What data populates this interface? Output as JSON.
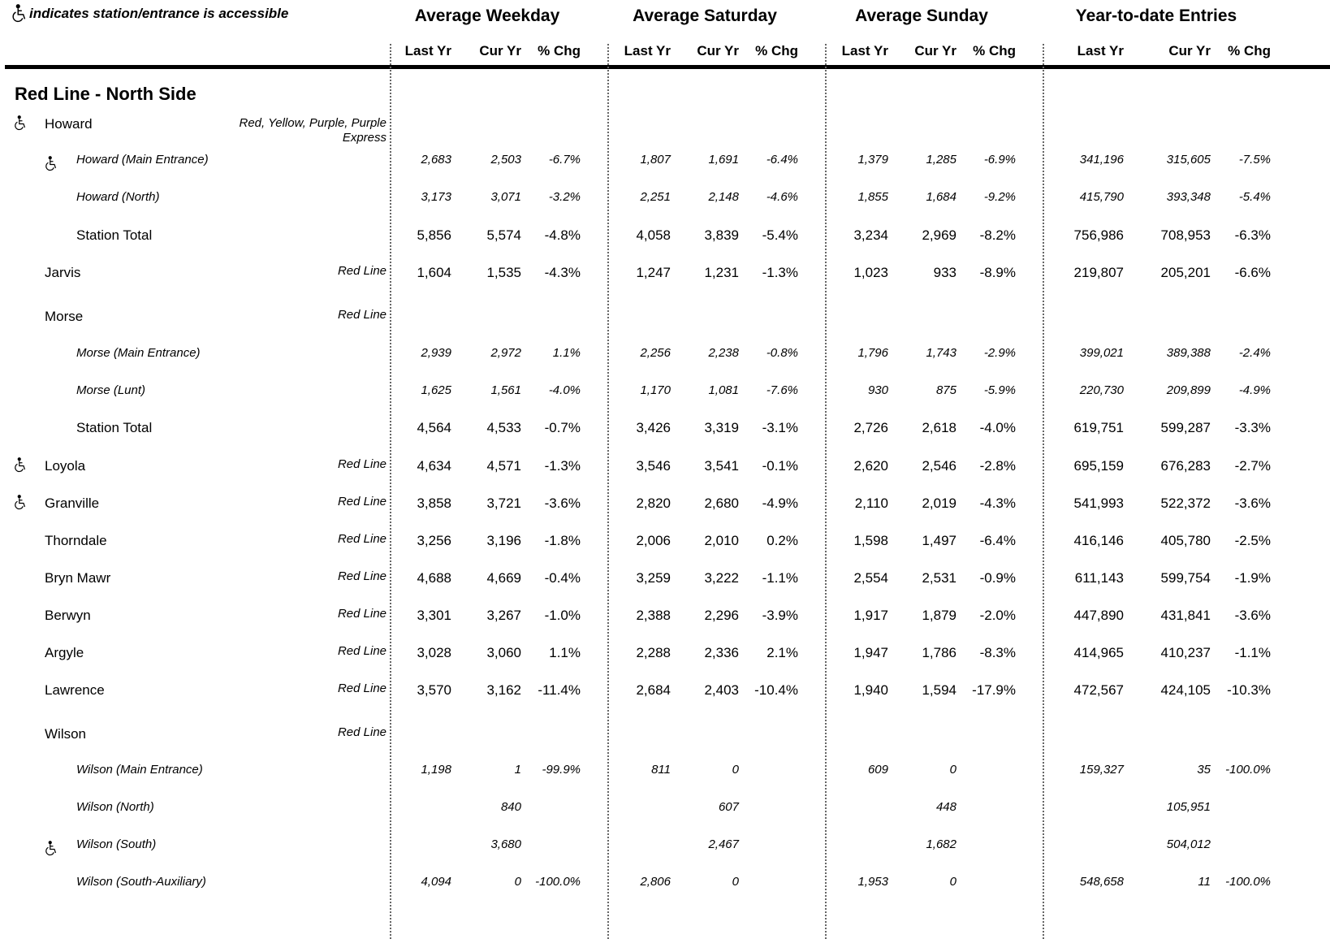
{
  "legend": {
    "text": "indicates station/entrance is accessible",
    "icon": "wheelchair-icon"
  },
  "groups": [
    "Average Weekday",
    "Average Saturday",
    "Average Sunday",
    "Year-to-date Entries"
  ],
  "subheaders": [
    "Last Yr",
    "Cur Yr",
    "% Chg"
  ],
  "section_title": "Red Line - North Side",
  "rows": [
    {
      "type": "station",
      "accessible": true,
      "name": "Howard",
      "lines": "Red, Yellow, Purple, Purple\nExpress",
      "values": []
    },
    {
      "type": "entrance",
      "accessible": true,
      "name": "Howard (Main Entrance)",
      "lines": "",
      "values": [
        "2,683",
        "2,503",
        "-6.7%",
        "1,807",
        "1,691",
        "-6.4%",
        "1,379",
        "1,285",
        "-6.9%",
        "341,196",
        "315,605",
        "-7.5%"
      ]
    },
    {
      "type": "entrance",
      "accessible": false,
      "name": "Howard (North)",
      "lines": "",
      "values": [
        "3,173",
        "3,071",
        "-3.2%",
        "2,251",
        "2,148",
        "-4.6%",
        "1,855",
        "1,684",
        "-9.2%",
        "415,790",
        "393,348",
        "-5.4%"
      ]
    },
    {
      "type": "total",
      "accessible": false,
      "name": "Station Total",
      "lines": "",
      "values": [
        "5,856",
        "5,574",
        "-4.8%",
        "4,058",
        "3,839",
        "-5.4%",
        "3,234",
        "2,969",
        "-8.2%",
        "756,986",
        "708,953",
        "-6.3%"
      ]
    },
    {
      "type": "station",
      "accessible": false,
      "name": "Jarvis",
      "lines": "Red Line",
      "values": [
        "1,604",
        "1,535",
        "-4.3%",
        "1,247",
        "1,231",
        "-1.3%",
        "1,023",
        "933",
        "-8.9%",
        "219,807",
        "205,201",
        "-6.6%"
      ]
    },
    {
      "type": "station",
      "accessible": false,
      "name": "Morse",
      "lines": "Red Line",
      "values": []
    },
    {
      "type": "entrance",
      "accessible": false,
      "name": "Morse (Main Entrance)",
      "lines": "",
      "values": [
        "2,939",
        "2,972",
        "1.1%",
        "2,256",
        "2,238",
        "-0.8%",
        "1,796",
        "1,743",
        "-2.9%",
        "399,021",
        "389,388",
        "-2.4%"
      ]
    },
    {
      "type": "entrance",
      "accessible": false,
      "name": "Morse (Lunt)",
      "lines": "",
      "values": [
        "1,625",
        "1,561",
        "-4.0%",
        "1,170",
        "1,081",
        "-7.6%",
        "930",
        "875",
        "-5.9%",
        "220,730",
        "209,899",
        "-4.9%"
      ]
    },
    {
      "type": "total",
      "accessible": false,
      "name": "Station Total",
      "lines": "",
      "values": [
        "4,564",
        "4,533",
        "-0.7%",
        "3,426",
        "3,319",
        "-3.1%",
        "2,726",
        "2,618",
        "-4.0%",
        "619,751",
        "599,287",
        "-3.3%"
      ]
    },
    {
      "type": "station",
      "accessible": true,
      "name": "Loyola",
      "lines": "Red Line",
      "values": [
        "4,634",
        "4,571",
        "-1.3%",
        "3,546",
        "3,541",
        "-0.1%",
        "2,620",
        "2,546",
        "-2.8%",
        "695,159",
        "676,283",
        "-2.7%"
      ]
    },
    {
      "type": "station",
      "accessible": true,
      "name": "Granville",
      "lines": "Red Line",
      "values": [
        "3,858",
        "3,721",
        "-3.6%",
        "2,820",
        "2,680",
        "-4.9%",
        "2,110",
        "2,019",
        "-4.3%",
        "541,993",
        "522,372",
        "-3.6%"
      ]
    },
    {
      "type": "station",
      "accessible": false,
      "name": "Thorndale",
      "lines": "Red Line",
      "values": [
        "3,256",
        "3,196",
        "-1.8%",
        "2,006",
        "2,010",
        "0.2%",
        "1,598",
        "1,497",
        "-6.4%",
        "416,146",
        "405,780",
        "-2.5%"
      ]
    },
    {
      "type": "station",
      "accessible": false,
      "name": "Bryn Mawr",
      "lines": "Red Line",
      "values": [
        "4,688",
        "4,669",
        "-0.4%",
        "3,259",
        "3,222",
        "-1.1%",
        "2,554",
        "2,531",
        "-0.9%",
        "611,143",
        "599,754",
        "-1.9%"
      ]
    },
    {
      "type": "station",
      "accessible": false,
      "name": "Berwyn",
      "lines": "Red Line",
      "values": [
        "3,301",
        "3,267",
        "-1.0%",
        "2,388",
        "2,296",
        "-3.9%",
        "1,917",
        "1,879",
        "-2.0%",
        "447,890",
        "431,841",
        "-3.6%"
      ]
    },
    {
      "type": "station",
      "accessible": false,
      "name": "Argyle",
      "lines": "Red Line",
      "values": [
        "3,028",
        "3,060",
        "1.1%",
        "2,288",
        "2,336",
        "2.1%",
        "1,947",
        "1,786",
        "-8.3%",
        "414,965",
        "410,237",
        "-1.1%"
      ]
    },
    {
      "type": "station",
      "accessible": false,
      "name": "Lawrence",
      "lines": "Red Line",
      "values": [
        "3,570",
        "3,162",
        "-11.4%",
        "2,684",
        "2,403",
        "-10.4%",
        "1,940",
        "1,594",
        "-17.9%",
        "472,567",
        "424,105",
        "-10.3%"
      ]
    },
    {
      "type": "station",
      "accessible": false,
      "name": "Wilson",
      "lines": "Red Line",
      "values": []
    },
    {
      "type": "entrance",
      "accessible": false,
      "name": "Wilson (Main Entrance)",
      "lines": "",
      "values": [
        "1,198",
        "1",
        "-99.9%",
        "811",
        "0",
        "",
        "609",
        "0",
        "",
        "159,327",
        "35",
        "-100.0%"
      ]
    },
    {
      "type": "entrance",
      "accessible": false,
      "name": "Wilson (North)",
      "lines": "",
      "values": [
        "",
        "840",
        "",
        "",
        "607",
        "",
        "",
        "448",
        "",
        "",
        "105,951",
        ""
      ]
    },
    {
      "type": "entrance",
      "accessible": true,
      "name": "Wilson (South)",
      "lines": "",
      "values": [
        "",
        "3,680",
        "",
        "",
        "2,467",
        "",
        "",
        "1,682",
        "",
        "",
        "504,012",
        ""
      ]
    },
    {
      "type": "entrance",
      "accessible": false,
      "name": "Wilson (South-Auxiliary)",
      "lines": "",
      "values": [
        "4,094",
        "0",
        "-100.0%",
        "2,806",
        "0",
        "",
        "1,953",
        "0",
        "",
        "548,658",
        "11",
        "-100.0%"
      ]
    }
  ]
}
